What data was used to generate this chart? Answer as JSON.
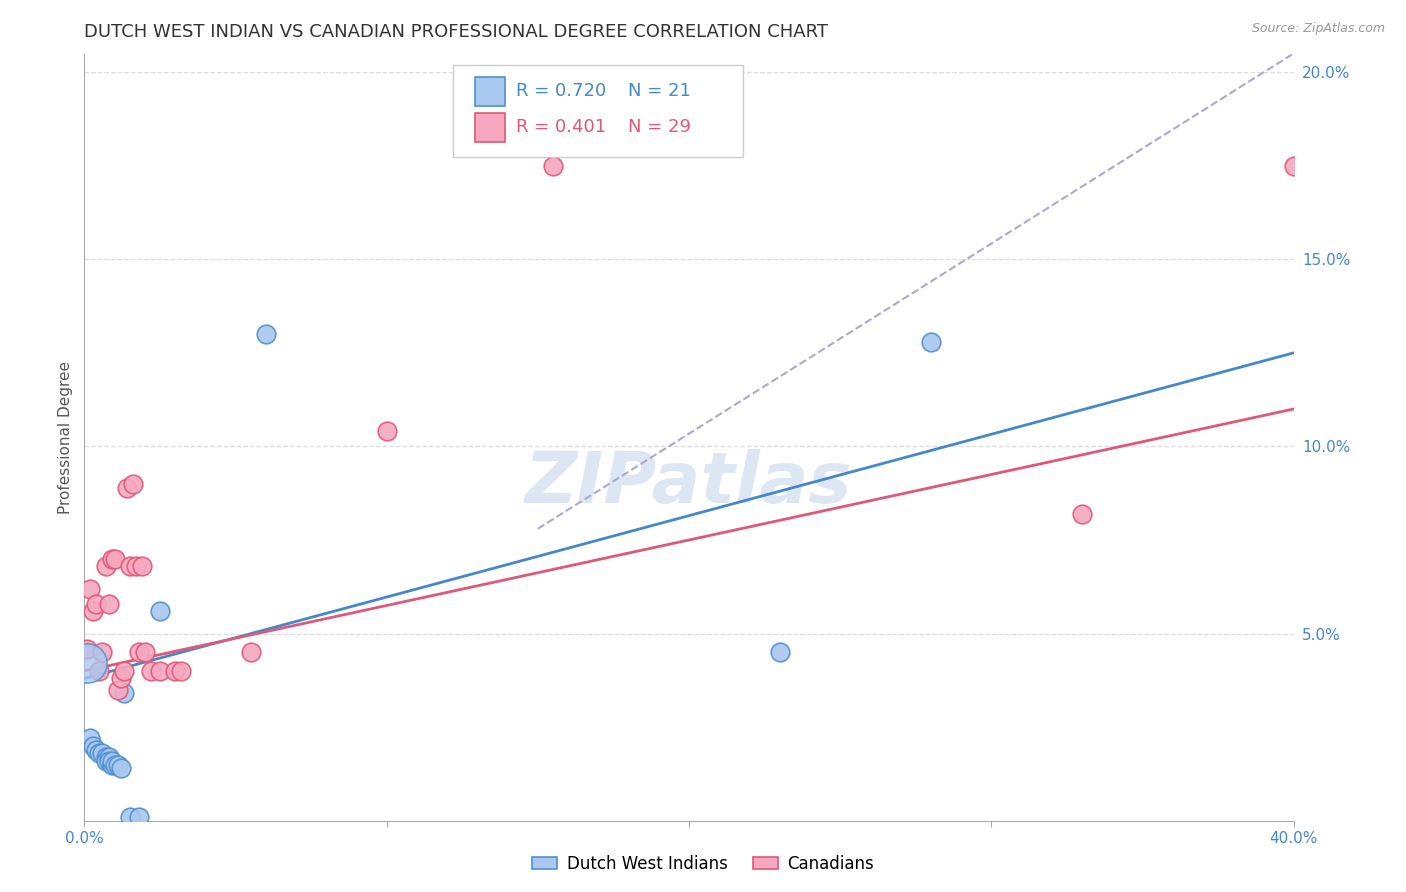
{
  "title": "DUTCH WEST INDIAN VS CANADIAN PROFESSIONAL DEGREE CORRELATION CHART",
  "source": "Source: ZipAtlas.com",
  "ylabel": "Professional Degree",
  "xlim": [
    0.0,
    0.4
  ],
  "ylim": [
    0.0,
    0.205
  ],
  "yticks": [
    0.05,
    0.1,
    0.15,
    0.2
  ],
  "ytick_labels": [
    "5.0%",
    "10.0%",
    "15.0%",
    "20.0%"
  ],
  "xticks": [
    0.0,
    0.1,
    0.2,
    0.3,
    0.4
  ],
  "xtick_labels": [
    "0.0%",
    "",
    "",
    "",
    "40.0%"
  ],
  "blue_color": "#A8C8F0",
  "pink_color": "#F5A8C0",
  "blue_edge_color": "#5090D0",
  "pink_edge_color": "#E05878",
  "blue_line_color": "#4488CC",
  "pink_line_color": "#E05878",
  "dashed_line_color": "#AAAACC",
  "legend_r_blue": "R = 0.720",
  "legend_n_blue": "N = 21",
  "legend_r_pink": "R = 0.401",
  "legend_n_pink": "N = 29",
  "watermark": "ZIPatlas",
  "blue_points": [
    [
      0.002,
      0.022
    ],
    [
      0.003,
      0.02
    ],
    [
      0.004,
      0.019
    ],
    [
      0.005,
      0.018
    ],
    [
      0.006,
      0.018
    ],
    [
      0.007,
      0.017
    ],
    [
      0.007,
      0.016
    ],
    [
      0.008,
      0.017
    ],
    [
      0.008,
      0.016
    ],
    [
      0.009,
      0.015
    ],
    [
      0.009,
      0.016
    ],
    [
      0.01,
      0.015
    ],
    [
      0.011,
      0.015
    ],
    [
      0.012,
      0.014
    ],
    [
      0.013,
      0.034
    ],
    [
      0.015,
      0.001
    ],
    [
      0.018,
      0.001
    ],
    [
      0.025,
      0.056
    ],
    [
      0.06,
      0.13
    ],
    [
      0.23,
      0.045
    ],
    [
      0.28,
      0.128
    ]
  ],
  "pink_points": [
    [
      0.001,
      0.046
    ],
    [
      0.002,
      0.062
    ],
    [
      0.003,
      0.056
    ],
    [
      0.004,
      0.058
    ],
    [
      0.005,
      0.04
    ],
    [
      0.006,
      0.045
    ],
    [
      0.007,
      0.068
    ],
    [
      0.008,
      0.058
    ],
    [
      0.009,
      0.07
    ],
    [
      0.01,
      0.07
    ],
    [
      0.011,
      0.035
    ],
    [
      0.012,
      0.038
    ],
    [
      0.013,
      0.04
    ],
    [
      0.014,
      0.089
    ],
    [
      0.015,
      0.068
    ],
    [
      0.016,
      0.09
    ],
    [
      0.017,
      0.068
    ],
    [
      0.018,
      0.045
    ],
    [
      0.019,
      0.068
    ],
    [
      0.02,
      0.045
    ],
    [
      0.022,
      0.04
    ],
    [
      0.025,
      0.04
    ],
    [
      0.03,
      0.04
    ],
    [
      0.032,
      0.04
    ],
    [
      0.055,
      0.045
    ],
    [
      0.1,
      0.104
    ],
    [
      0.155,
      0.175
    ],
    [
      0.33,
      0.082
    ],
    [
      0.4,
      0.175
    ]
  ],
  "blue_line_x": [
    0.0,
    0.4
  ],
  "blue_line_y": [
    0.038,
    0.125
  ],
  "pink_line_x": [
    0.0,
    0.4
  ],
  "pink_line_y": [
    0.04,
    0.11
  ],
  "dashed_line_x": [
    0.15,
    0.4
  ],
  "dashed_line_y": [
    0.078,
    0.205
  ],
  "title_fontsize": 13,
  "axis_label_fontsize": 11,
  "tick_fontsize": 11,
  "legend_fontsize": 13,
  "watermark_fontsize": 52,
  "background_color": "#FFFFFF",
  "grid_color": "#DDDDDD"
}
